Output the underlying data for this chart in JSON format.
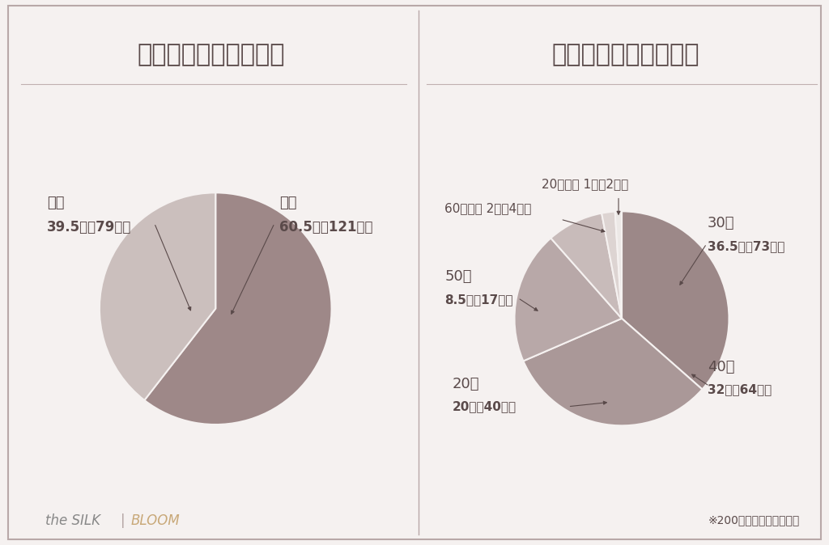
{
  "bg_color": "#f5f1f0",
  "border_color": "#b8a8a8",
  "text_color": "#5a4a4a",
  "title_color": "#5a4a4a",
  "divider_color": "#c0b0b0",
  "gender_title": "性別を教えてください",
  "gender_values": [
    60.5,
    39.5
  ],
  "gender_colors": [
    "#9e8888",
    "#cbbfbd"
  ],
  "age_title": "年齢を教えてください",
  "age_values": [
    36.5,
    32.0,
    20.0,
    8.5,
    2.0,
    1.0
  ],
  "age_colors": [
    "#9c8888",
    "#aa9898",
    "#b8a8a8",
    "#c8bbba",
    "#ddd4d2",
    "#ece8e6"
  ],
  "footer_right": "※200名回答・単一選択式"
}
